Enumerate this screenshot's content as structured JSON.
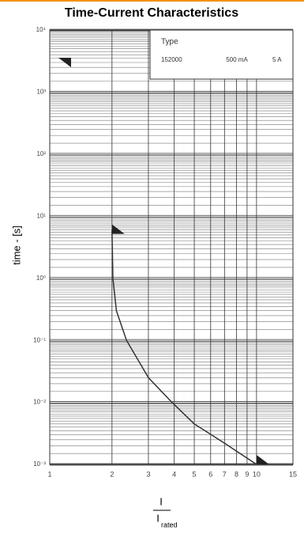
{
  "chart_data": {
    "type": "line",
    "title": "Time-Current Characteristics",
    "ylabel": "time - [s]",
    "xlabel_numerator": "I",
    "xlabel_denominator": "I",
    "xlabel_subscript": "rated",
    "legend_title": "Type",
    "legend_entries": [
      "152000",
      "500 mA",
      "5 A"
    ],
    "xscale": "log",
    "yscale": "log",
    "grid": true,
    "minor_grid": true,
    "xlim": [
      1,
      15
    ],
    "ylim": [
      0.001,
      10000
    ],
    "xticks": [
      1,
      2,
      3,
      4,
      5,
      6,
      7,
      8,
      9,
      10,
      15
    ],
    "yticks": [
      {
        "value": 0.001,
        "label": "10⁻³"
      },
      {
        "value": 0.01,
        "label": "10⁻²"
      },
      {
        "value": 0.1,
        "label": "10⁻¹"
      },
      {
        "value": 1,
        "label": "10⁰"
      },
      {
        "value": 10,
        "label": "10¹"
      },
      {
        "value": 100,
        "label": "10²"
      },
      {
        "value": 1000,
        "label": "10³"
      },
      {
        "value": 10000,
        "label": "10⁴"
      }
    ],
    "series": [
      {
        "color": "#333333",
        "x": [
          2,
          2.02,
          2.1,
          2.35,
          3,
          3.9,
          5,
          7,
          10
        ],
        "values": [
          6,
          1,
          0.3,
          0.1,
          0.025,
          0.01,
          0.0045,
          0.0022,
          0.001
        ]
      }
    ]
  }
}
